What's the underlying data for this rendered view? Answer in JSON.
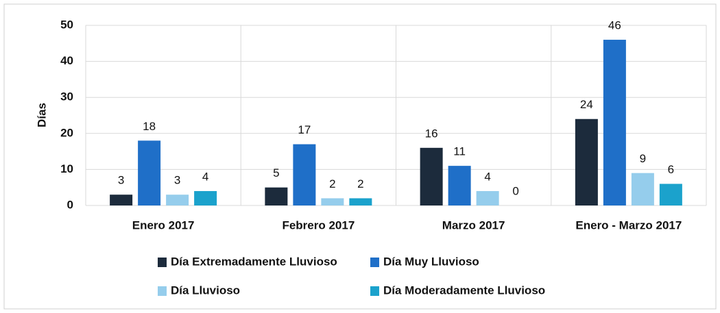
{
  "chart_data": {
    "type": "bar",
    "ylabel": "Días",
    "categories": [
      "Enero 2017",
      "Febrero 2017",
      "Marzo 2017",
      "Enero - Marzo 2017"
    ],
    "series": [
      {
        "name": "Día Extremadamente Lluvioso",
        "color": "#1c2b3c",
        "values": [
          3,
          5,
          16,
          24
        ]
      },
      {
        "name": "Día Muy Lluvioso",
        "color": "#1f6fc8",
        "values": [
          18,
          17,
          11,
          46
        ]
      },
      {
        "name": "Día Lluvioso",
        "color": "#95cdec",
        "values": [
          3,
          2,
          4,
          9
        ]
      },
      {
        "name": "Día Moderadamente Lluvioso",
        "color": "#1ba2cc",
        "values": [
          4,
          2,
          0,
          6
        ]
      }
    ],
    "ylim": [
      0,
      50
    ],
    "yticks": [
      0,
      10,
      20,
      30,
      40,
      50
    ],
    "grid": true,
    "legend": "bottom"
  }
}
